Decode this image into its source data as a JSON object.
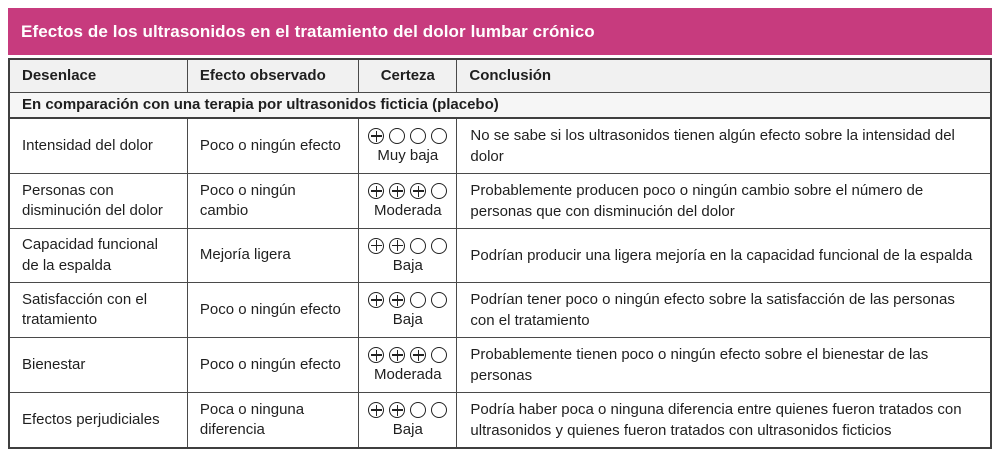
{
  "title": "Efectos de los ultrasonidos en el tratamiento del dolor lumbar crónico",
  "colors": {
    "title_bg": "#c73b7e",
    "title_text": "#ffffff",
    "header_bg": "#f1f1f1",
    "section_bg": "#f6f6f6",
    "border": "#4a4a4a",
    "text": "#1f1f1f"
  },
  "table": {
    "columns": [
      "Desenlace",
      "Efecto observado",
      "Certeza",
      "Conclusión"
    ],
    "section_header": "En comparación con una terapia por ultrasonidos ficticia (placebo)",
    "rows": [
      {
        "outcome": "Intensidad del dolor",
        "effect": "Poco o ningún efecto",
        "certainty_symbols": "⊕○○○",
        "certainty_plus": 1,
        "certainty_total": 4,
        "certainty_label": "Muy baja",
        "conclusion": "No se sabe si los ultrasonidos tienen algún efecto sobre la intensidad del dolor"
      },
      {
        "outcome": "Personas con disminución del dolor",
        "effect": "Poco o ningún cambio",
        "certainty_symbols": "⊕⊕⊕○",
        "certainty_plus": 3,
        "certainty_total": 4,
        "certainty_label": "Moderada",
        "conclusion": "Probablemente producen poco o ningún cambio sobre el número de personas que con disminución del dolor"
      },
      {
        "outcome": "Capacidad funcional de la espalda",
        "effect": "Mejoría ligera",
        "certainty_symbols": "⊕⊕○○",
        "certainty_plus": 2,
        "certainty_total": 4,
        "certainty_label": "Baja",
        "conclusion": "Podrían producir una ligera mejoría en la capacidad funcional de la espalda"
      },
      {
        "outcome": "Satisfacción con el tratamiento",
        "effect": "Poco o ningún efecto",
        "certainty_symbols": "⊕⊕○○",
        "certainty_plus": 2,
        "certainty_total": 4,
        "certainty_label": "Baja",
        "conclusion": "Podrían tener poco o ningún efecto sobre la satisfacción de las personas con el tratamiento"
      },
      {
        "outcome": "Bienestar",
        "effect": "Poco o ningún efecto",
        "certainty_symbols": "⊕⊕⊕○",
        "certainty_plus": 3,
        "certainty_total": 4,
        "certainty_label": "Moderada",
        "conclusion": "Probablemente tienen poco o ningún efecto sobre el bienestar de las personas"
      },
      {
        "outcome": "Efectos perjudiciales",
        "effect": "Poca o ninguna diferencia",
        "certainty_symbols": "⊕⊕○○",
        "certainty_plus": 2,
        "certainty_total": 4,
        "certainty_label": "Baja",
        "conclusion": "Podría haber poca o ninguna diferencia entre quienes fueron tratados con ultrasonidos y quienes fueron tratados con ultrasonidos ficticios"
      }
    ]
  }
}
